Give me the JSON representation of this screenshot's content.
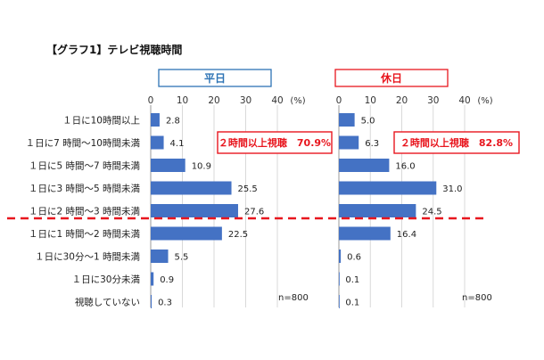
{
  "title": "【グラフ1】テレビ視聴時間",
  "colors": {
    "bar": "#4472c4",
    "weekday": "#2e74b5",
    "holiday": "#e8161e"
  },
  "chart_data": [
    {
      "type": "bar",
      "orientation": "horizontal",
      "title": "平日",
      "categories": [
        "１日に10時間以上",
        "１日に7 時間～10時間未満",
        "１日に5 時間～7 時間未満",
        "１日に3 時間～5 時間未満",
        "１日に2 時間～3 時間未満",
        "１日に1 時間～2 時間未満",
        "１日に30分～1 時間未満",
        "１日に30分未満",
        "視聴していない"
      ],
      "values": [
        2.8,
        4.1,
        10.9,
        25.5,
        27.6,
        22.5,
        5.5,
        0.9,
        0.3
      ],
      "value_labels": [
        "2.8",
        "4.1",
        "10.9",
        "25.5",
        "27.6",
        "22.5",
        "5.5",
        "0.9",
        "0.3"
      ],
      "xlim": [
        0,
        40
      ],
      "ticks": [
        "0",
        "10",
        "20",
        "30",
        "40"
      ],
      "unit": "(%)",
      "annotation": "２時間以上視聴　70.9%",
      "n_label": "n=800"
    },
    {
      "type": "bar",
      "orientation": "horizontal",
      "title": "休日",
      "categories": [
        "１日に10時間以上",
        "１日に7 時間～10時間未満",
        "１日に5 時間～7 時間未満",
        "１日に3 時間～5 時間未満",
        "１日に2 時間～3 時間未満",
        "１日に1 時間～2 時間未満",
        "１日に30分～1 時間未満",
        "１日に30分未満",
        "視聴していない"
      ],
      "values": [
        5.0,
        6.3,
        16.0,
        31.0,
        24.5,
        16.4,
        0.6,
        0.1,
        0.1
      ],
      "value_labels": [
        "5.0",
        "6.3",
        "16.0",
        "31.0",
        "24.5",
        "16.4",
        "0.6",
        "0.1",
        "0.1"
      ],
      "xlim": [
        0,
        40
      ],
      "ticks": [
        "0",
        "10",
        "20",
        "30",
        "40"
      ],
      "unit": "(%)",
      "annotation": "２時間以上視聴　82.8%",
      "n_label": "n=800"
    }
  ]
}
